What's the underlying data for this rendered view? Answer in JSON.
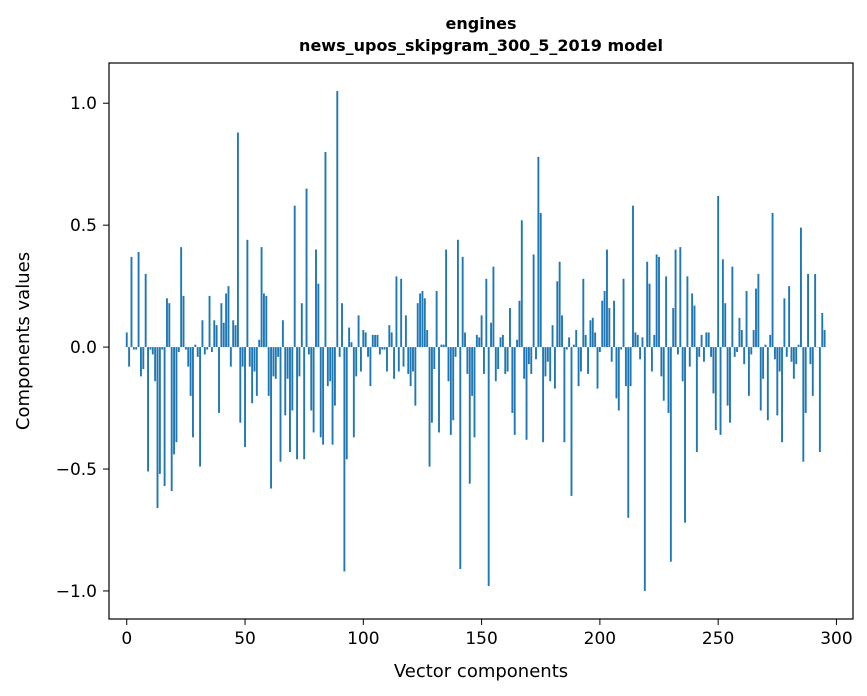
{
  "chart_data": {
    "type": "bar",
    "title": "engines",
    "subtitle": "news_upos_skipgram_300_5_2019 model",
    "xlabel": "Vector components",
    "ylabel": "Components values",
    "xlim": [
      -7.5,
      307
    ],
    "ylim": [
      -1.115,
      1.165
    ],
    "xticks": [
      0,
      50,
      100,
      150,
      200,
      250,
      300
    ],
    "yticks": [
      -1.0,
      -0.5,
      0.0,
      0.5,
      1.0
    ],
    "ytick_labels": [
      "−1.0",
      "−0.5",
      "0.0",
      "0.5",
      "1.0"
    ],
    "bar_color": "#1f77b4",
    "grid": false,
    "legend": "none",
    "values": [
      0.06,
      -0.08,
      0.37,
      -0.01,
      -0.01,
      0.39,
      -0.12,
      -0.09,
      0.3,
      -0.51,
      -0.01,
      -0.03,
      -0.14,
      -0.66,
      -0.52,
      -0.01,
      -0.57,
      0.2,
      0.18,
      -0.59,
      -0.44,
      -0.39,
      -0.02,
      0.41,
      0.21,
      -0.01,
      -0.08,
      -0.2,
      -0.37,
      0.01,
      -0.04,
      -0.49,
      0.11,
      -0.03,
      -0.01,
      0.21,
      -0.02,
      0.11,
      0.09,
      -0.27,
      0.18,
      0.1,
      0.22,
      0.25,
      -0.08,
      0.11,
      0.09,
      0.88,
      -0.31,
      -0.08,
      -0.41,
      0.44,
      -0.08,
      -0.23,
      -0.1,
      -0.2,
      0.03,
      0.41,
      0.22,
      0.21,
      -0.2,
      -0.58,
      -0.12,
      -0.13,
      -0.04,
      -0.47,
      0.11,
      -0.28,
      -0.13,
      -0.43,
      -0.26,
      0.58,
      -0.46,
      -0.12,
      0.18,
      -0.46,
      0.65,
      -0.03,
      -0.26,
      -0.35,
      0.4,
      0.26,
      -0.37,
      -0.4,
      0.8,
      -0.16,
      -0.14,
      -0.4,
      -0.24,
      1.05,
      -0.04,
      0.18,
      -0.92,
      -0.46,
      0.08,
      0.02,
      -0.37,
      -0.12,
      0.13,
      -0.1,
      0.07,
      0.06,
      -0.04,
      -0.16,
      0.05,
      0.05,
      0.05,
      -0.03,
      -0.01,
      -0.01,
      -0.1,
      0.09,
      0.06,
      -0.13,
      0.29,
      -0.1,
      0.28,
      -0.08,
      0.13,
      -0.11,
      -0.16,
      -0.1,
      -0.24,
      0.18,
      0.22,
      0.23,
      0.2,
      0.07,
      -0.49,
      -0.31,
      -0.09,
      0.23,
      -0.35,
      0.01,
      0.01,
      0.4,
      -0.14,
      -0.36,
      -0.3,
      -0.04,
      0.44,
      -0.91,
      0.37,
      0.06,
      -0.11,
      -0.56,
      -0.2,
      -0.37,
      0.05,
      0.04,
      0.13,
      -0.11,
      0.28,
      -0.98,
      0.1,
      0.33,
      -0.14,
      -0.09,
      0.04,
      0.05,
      -0.11,
      -0.1,
      0.16,
      -0.27,
      -0.36,
      0.03,
      0.19,
      0.52,
      -0.13,
      -0.38,
      -0.07,
      -0.11,
      0.38,
      -0.05,
      0.78,
      0.55,
      -0.39,
      -0.12,
      -0.06,
      -0.14,
      0.09,
      -0.17,
      0.27,
      0.35,
      0.13,
      -0.39,
      -0.01,
      0.04,
      -0.61,
      0.01,
      0.07,
      -0.16,
      -0.1,
      0.28,
      0.05,
      -0.11,
      0.11,
      0.12,
      0.06,
      -0.17,
      -0.02,
      0.19,
      0.23,
      0.4,
      0.16,
      -0.06,
      0.19,
      -0.21,
      -0.26,
      -0.01,
      0.28,
      -0.16,
      -0.7,
      -0.16,
      0.58,
      0.06,
      0.05,
      -0.05,
      0.04,
      -1.0,
      0.35,
      0.26,
      -0.1,
      0.05,
      0.38,
      0.37,
      -0.12,
      -0.22,
      0.29,
      -0.27,
      -0.88,
      0.16,
      0.4,
      -0.03,
      0.41,
      -0.14,
      -0.72,
      0.29,
      -0.08,
      0.22,
      0.17,
      -0.43,
      -0.04,
      0.05,
      -0.06,
      0.06,
      0.06,
      -0.04,
      -0.19,
      -0.34,
      0.62,
      -0.36,
      0.36,
      0.18,
      -0.24,
      -0.31,
      0.33,
      -0.04,
      -0.02,
      0.12,
      0.07,
      -0.07,
      0.23,
      -0.2,
      -0.03,
      0.07,
      0.24,
      0.3,
      -0.26,
      -0.13,
      0.01,
      -0.3,
      0.05,
      0.55,
      -0.05,
      -0.28,
      -0.1,
      -0.39,
      0.2,
      -0.04,
      0.25,
      -0.06,
      -0.13,
      -0.07,
      0.01,
      0.49,
      -0.47,
      -0.27,
      0.3,
      -0.07,
      -0.2,
      0.3,
      0.0,
      -0.43,
      0.14,
      0.07
    ]
  }
}
